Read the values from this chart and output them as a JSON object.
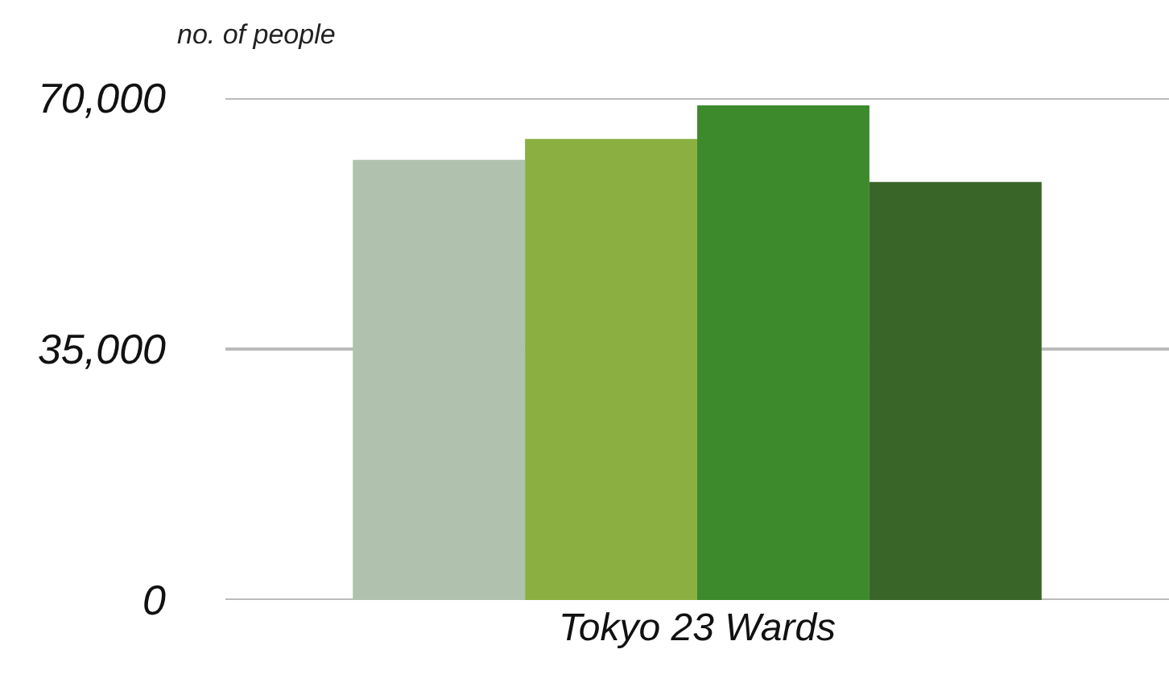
{
  "chart_data": {
    "type": "bar",
    "ylabel": "no. of people",
    "categories": [
      "Tokyo 23 Wards"
    ],
    "series": [
      {
        "color": "#b0c2ad",
        "values": [
          61400
        ]
      },
      {
        "color": "#8bb041",
        "values": [
          64300
        ]
      },
      {
        "color": "#3d8a2d",
        "values": [
          69000
        ]
      },
      {
        "color": "#3a6528",
        "values": [
          58300
        ]
      }
    ],
    "ylim": [
      0,
      70000
    ],
    "yticks": [
      0,
      {
        "value": 35000,
        "label": "35,000"
      },
      {
        "value": 70000,
        "label": "70,000"
      }
    ],
    "grid": "y",
    "legend": false
  }
}
